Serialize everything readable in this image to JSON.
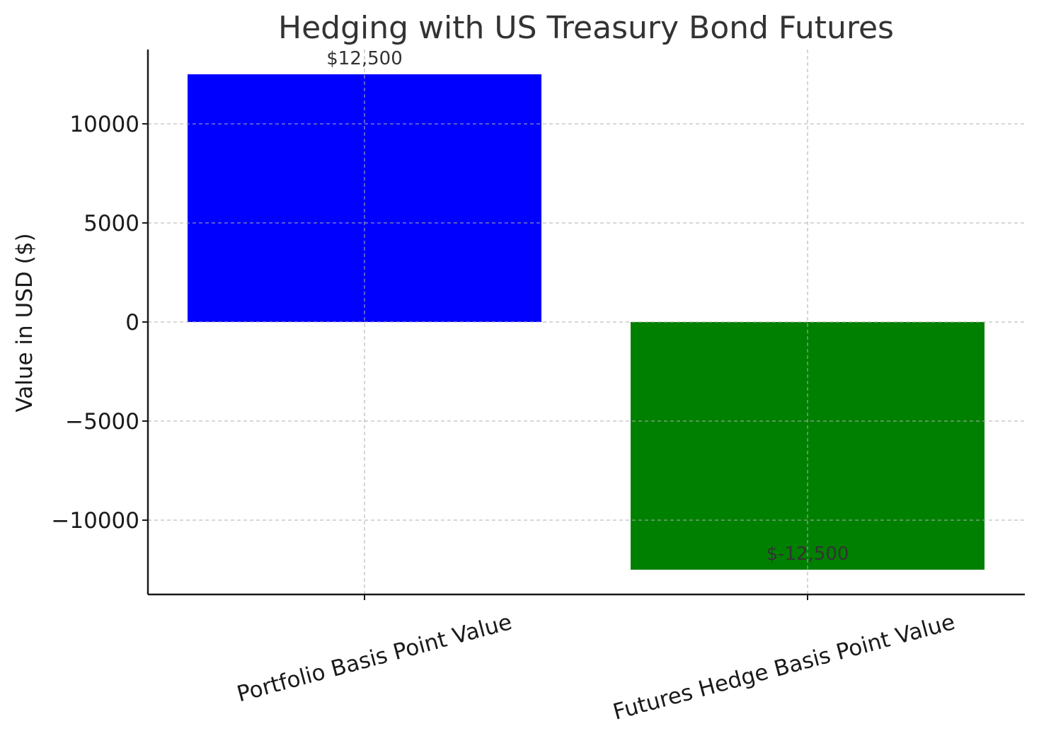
{
  "chart_data": {
    "type": "bar",
    "title": "Hedging with US Treasury Bond Futures",
    "xlabel": "",
    "ylabel": "Value in USD ($)",
    "categories": [
      "Portfolio Basis Point Value",
      "Futures Hedge Basis Point Value"
    ],
    "values": [
      12500,
      -12500
    ],
    "value_labels": [
      "$12,500",
      "$-12,500"
    ],
    "colors": [
      "#0000ff",
      "#008000"
    ],
    "ylim": [
      -13750,
      13750
    ],
    "yticks": [
      10000,
      5000,
      0,
      -5000,
      -10000
    ],
    "ytick_labels": [
      "10000",
      "5000",
      "0",
      "−5000",
      "−10000"
    ],
    "grid": true,
    "legend": "none"
  }
}
